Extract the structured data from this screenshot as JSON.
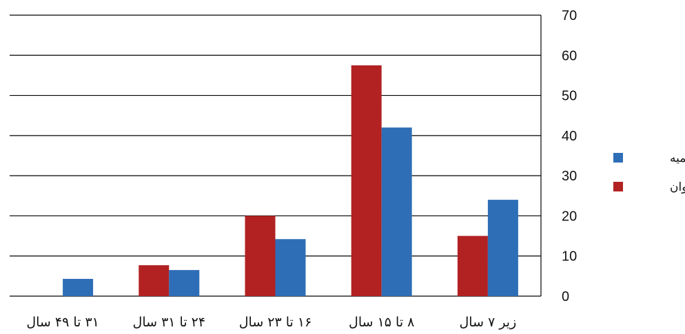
{
  "chart_data": {
    "type": "bar",
    "orientation": "rtl",
    "y_axis_side": "right",
    "categories": [
      "زیر ۷ سال",
      "۸ تا ۱۵ سال",
      "۱۶ تا ۲۳ سال",
      "۲۴ تا ۳۱ سال",
      "۳۱ تا ۴۹ سال"
    ],
    "series": [
      {
        "name": "واوان",
        "color": "#B22222",
        "values": [
          15,
          57.5,
          20,
          7.7,
          0
        ]
      },
      {
        "name": "قائمیه",
        "color": "#2E6EB7",
        "values": [
          24,
          42,
          14.2,
          6.5,
          4.3
        ]
      }
    ],
    "ylim": [
      0,
      70
    ],
    "yticks": [
      0,
      10,
      20,
      30,
      40,
      50,
      60,
      70
    ],
    "grid": true,
    "legend_position": "right",
    "legend": [
      "قائمیه",
      "واوان"
    ]
  }
}
